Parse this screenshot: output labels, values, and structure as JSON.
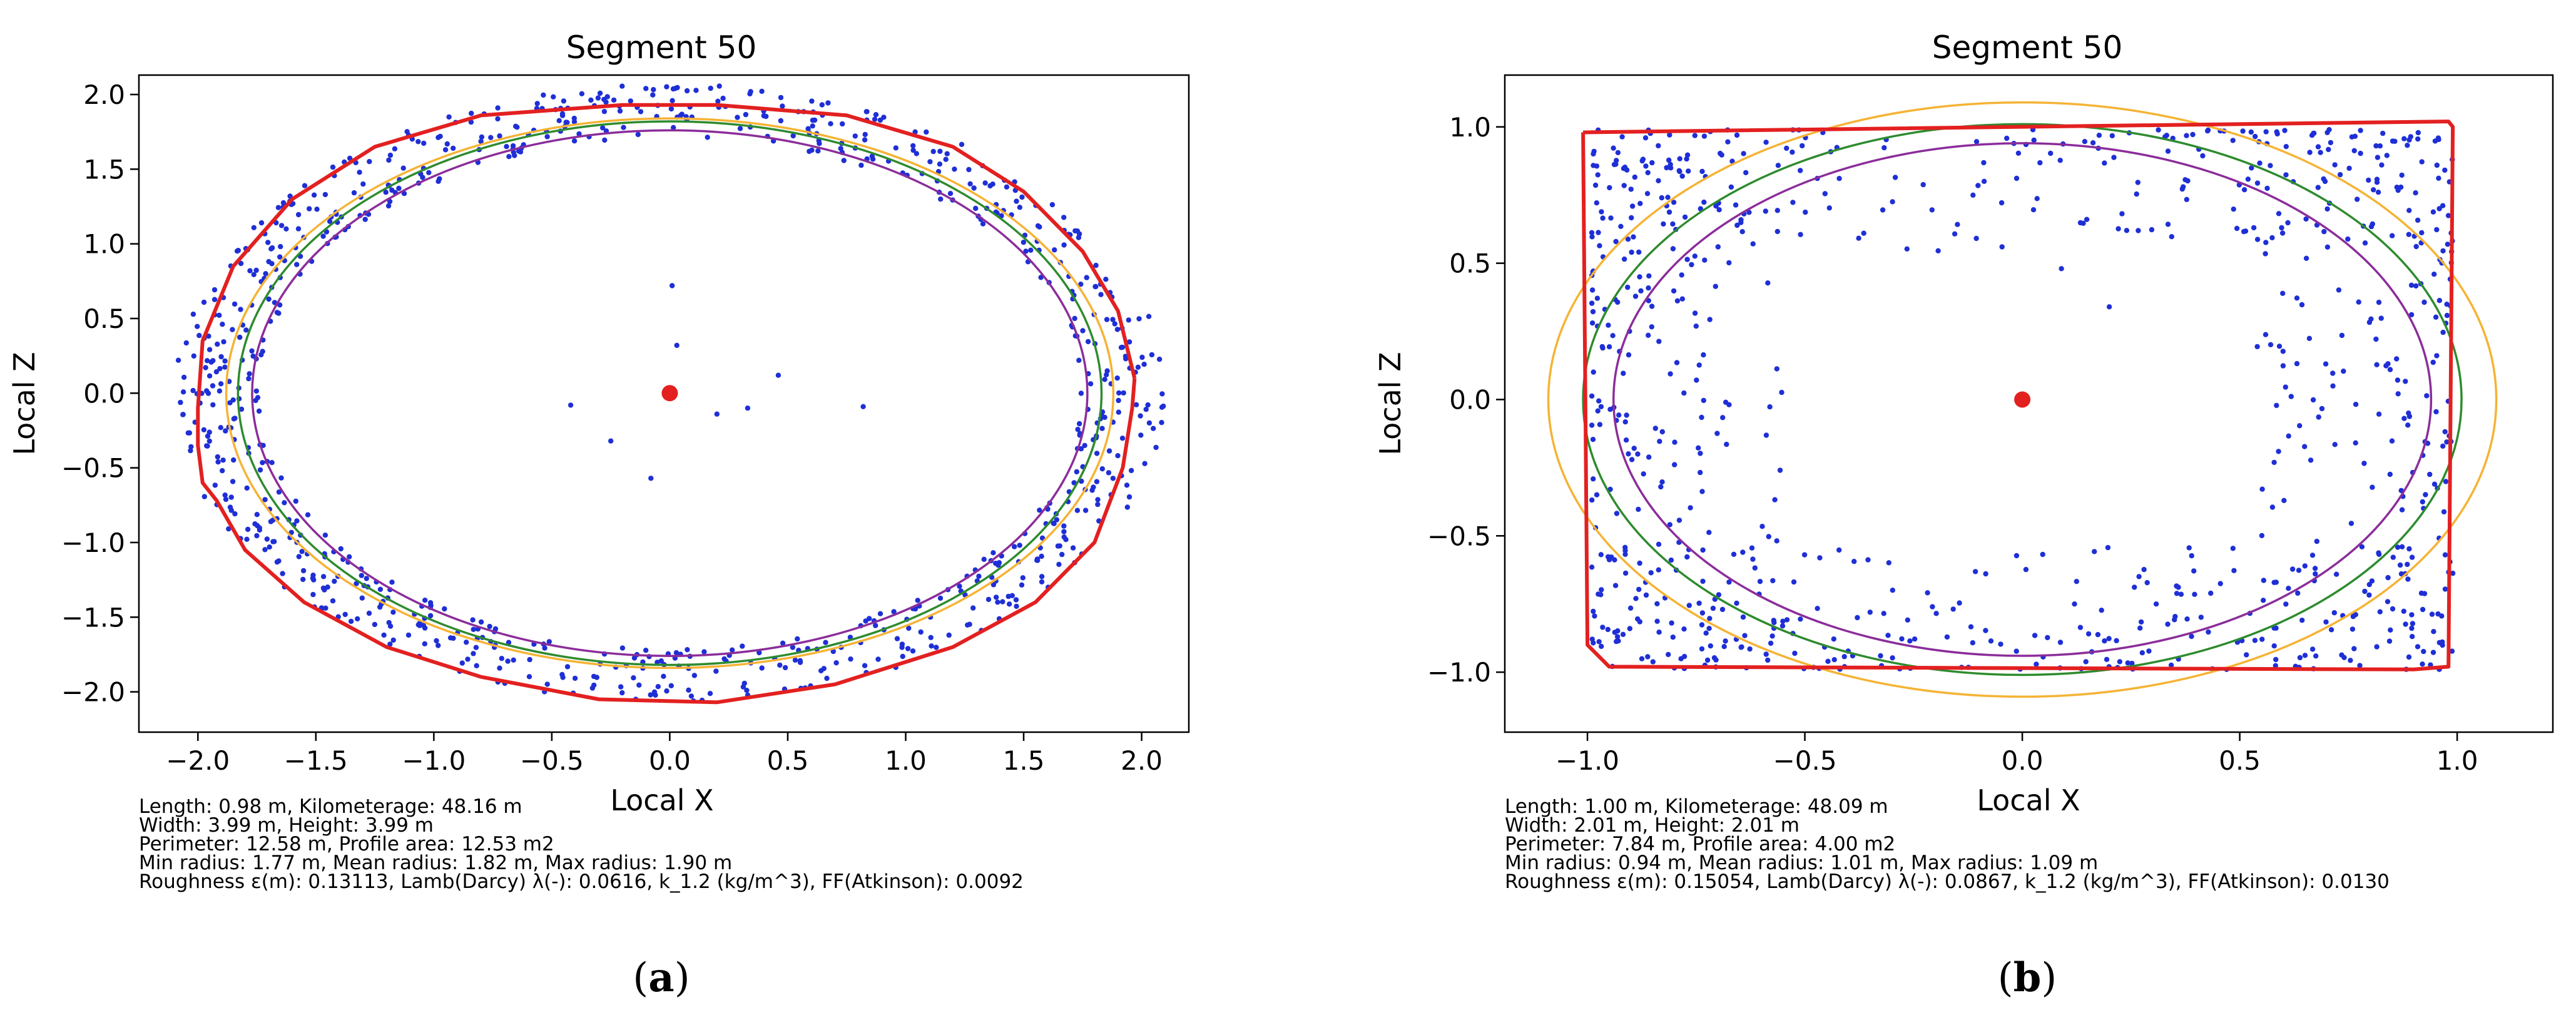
{
  "chart_data": [
    {
      "type": "scatter",
      "panel": "(a)",
      "panel_letter": "a",
      "title": "Segment 50",
      "xlabel": "Local X",
      "ylabel": "Local Z",
      "xlim": [
        -2.25,
        2.2
      ],
      "ylim": [
        -2.27,
        2.13
      ],
      "xticks": [
        -2.0,
        -1.5,
        -1.0,
        -0.5,
        0.0,
        0.5,
        1.0,
        1.5,
        2.0
      ],
      "xtick_labels": [
        "−2.0",
        "−1.5",
        "−1.0",
        "−0.5",
        "0.0",
        "0.5",
        "1.0",
        "1.5",
        "2.0"
      ],
      "yticks": [
        2.0,
        1.5,
        1.0,
        0.5,
        0.0,
        -0.5,
        -1.0,
        -1.5,
        -2.0
      ],
      "ytick_labels": [
        "2.0",
        "1.5",
        "1.0",
        "0.5",
        "0.0",
        "−0.5",
        "−1.0",
        "−1.5",
        "−2.0"
      ],
      "center": [
        0.0,
        0.0
      ],
      "ellipses": [
        {
          "name": "orange",
          "color": "#f5b335",
          "rx": 1.88,
          "rz": 1.84
        },
        {
          "name": "green",
          "color": "#2e8b2e",
          "rx": 1.83,
          "rz": 1.82
        },
        {
          "name": "purple",
          "color": "#8b2d9a",
          "rx": 1.77,
          "rz": 1.76
        }
      ],
      "boundary_polygon": [
        [
          1.97,
          0.1
        ],
        [
          1.9,
          0.55
        ],
        [
          1.75,
          0.95
        ],
        [
          1.5,
          1.35
        ],
        [
          1.2,
          1.65
        ],
        [
          0.75,
          1.86
        ],
        [
          0.2,
          1.93
        ],
        [
          -0.2,
          1.93
        ],
        [
          -0.8,
          1.86
        ],
        [
          -1.25,
          1.65
        ],
        [
          -1.6,
          1.3
        ],
        [
          -1.85,
          0.85
        ],
        [
          -1.98,
          0.35
        ],
        [
          -2.0,
          -0.1
        ],
        [
          -2.0,
          -0.35
        ],
        [
          -1.98,
          -0.6
        ],
        [
          -1.92,
          -0.72
        ],
        [
          -1.8,
          -1.05
        ],
        [
          -1.55,
          -1.4
        ],
        [
          -1.2,
          -1.7
        ],
        [
          -0.8,
          -1.9
        ],
        [
          -0.3,
          -2.05
        ],
        [
          0.2,
          -2.07
        ],
        [
          0.7,
          -1.95
        ],
        [
          1.2,
          -1.7
        ],
        [
          1.55,
          -1.4
        ],
        [
          1.8,
          -1.0
        ],
        [
          1.92,
          -0.5
        ],
        [
          1.96,
          -0.1
        ],
        [
          1.97,
          0.1
        ]
      ],
      "boundary_color": "#e32020",
      "point_color": "#1f2fd6",
      "center_color": "#e32020",
      "points": {
        "count": 900,
        "radius_range": [
          0.88,
          1.06
        ],
        "extent": [
          1.98,
          1.95
        ],
        "interior": [
          [
            0.03,
            0.32
          ],
          [
            0.01,
            0.72
          ],
          [
            0.46,
            0.12
          ],
          [
            0.82,
            -0.09
          ],
          [
            -0.42,
            -0.08
          ],
          [
            0.33,
            -0.1
          ],
          [
            -0.25,
            -0.32
          ],
          [
            0.2,
            -0.14
          ],
          [
            -0.08,
            -0.57
          ]
        ]
      },
      "info": [
        "Length: 0.98 m, Kilometerage: 48.16 m",
        "Width: 3.99 m, Height: 3.99 m",
        "Perimeter: 12.58 m, Profile area: 12.53 m2",
        "Min radius: 1.77 m, Mean radius: 1.82 m, Max radius: 1.90 m",
        "Roughness ε(m): 0.13113, Lamb(Darcy) λ(-): 0.0616, k_1.2 (kg/m^3), FF(Atkinson): 0.0092"
      ]
    },
    {
      "type": "scatter",
      "panel": "(b)",
      "panel_letter": "b",
      "title": "Segment 50",
      "xlabel": "Local X",
      "ylabel": "Local Z",
      "xlim": [
        -1.19,
        1.22
      ],
      "ylim": [
        -1.22,
        1.19
      ],
      "xticks": [
        -1.0,
        -0.5,
        0.0,
        0.5,
        1.0
      ],
      "xtick_labels": [
        "−1.0",
        "−0.5",
        "0.0",
        "0.5",
        "1.0"
      ],
      "yticks": [
        1.0,
        0.5,
        0.0,
        -0.5,
        -1.0
      ],
      "ytick_labels": [
        "1.0",
        "0.5",
        "0.0",
        "−0.5",
        "−1.0"
      ],
      "center": [
        0.0,
        0.0
      ],
      "ellipses": [
        {
          "name": "orange",
          "color": "#f5b335",
          "rx": 1.09,
          "rz": 1.09
        },
        {
          "name": "green",
          "color": "#2e8b2e",
          "rx": 1.01,
          "rz": 1.01
        },
        {
          "name": "purple",
          "color": "#8b2d9a",
          "rx": 0.94,
          "rz": 0.94
        }
      ],
      "boundary_polygon": [
        [
          -1.01,
          0.98
        ],
        [
          0.98,
          1.02
        ],
        [
          0.99,
          1.0
        ],
        [
          0.98,
          -0.98
        ],
        [
          0.9,
          -0.99
        ],
        [
          -0.95,
          -0.98
        ],
        [
          -1.0,
          -0.9
        ],
        [
          -1.01,
          0.98
        ]
      ],
      "boundary_color": "#e32020",
      "point_color": "#1f2fd6",
      "center_color": "#e32020",
      "points": {
        "count": 850,
        "rect_like": true,
        "extent": [
          0.99,
          0.99
        ],
        "interior": [
          [
            -0.88,
            0.45
          ],
          [
            0.37,
            0.78
          ],
          [
            0.09,
            0.48
          ],
          [
            0.24,
            0.62
          ],
          [
            0.12,
            -0.75
          ],
          [
            0.2,
            0.34
          ],
          [
            -0.35,
            -0.78
          ]
        ]
      },
      "info": [
        "Length: 1.00 m, Kilometerage: 48.09 m",
        "Width: 2.01 m, Height: 2.01 m",
        "Perimeter: 7.84 m, Profile area: 4.00 m2",
        "Min radius: 0.94 m, Mean radius: 1.01 m, Max radius: 1.09 m",
        "Roughness ε(m): 0.15054, Lamb(Darcy) λ(-): 0.0867, k_1.2 (kg/m^3), FF(Atkinson): 0.0130"
      ]
    }
  ]
}
